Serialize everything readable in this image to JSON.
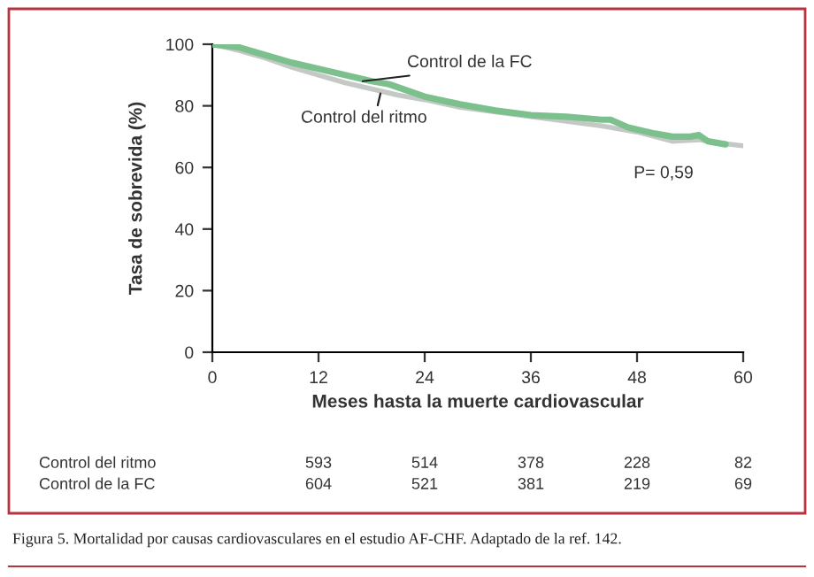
{
  "chart_data": {
    "type": "line",
    "xlabel": "Meses hasta la muerte cardiovascular",
    "ylabel": "Tasa de sobrevida (%)",
    "xlim": [
      0,
      60
    ],
    "xticks": [
      0,
      12,
      24,
      36,
      48,
      60
    ],
    "ylim": [
      0,
      100
    ],
    "yticks": [
      0,
      20,
      40,
      60,
      80,
      100
    ],
    "grid": false,
    "legend": false,
    "series": [
      {
        "name": "Control del ritmo",
        "color": "#c4c9c6",
        "x": [
          0,
          3,
          6,
          9,
          12,
          15,
          18,
          21,
          24,
          28,
          32,
          36,
          40,
          44,
          48,
          50,
          52,
          55,
          57,
          60
        ],
        "values": [
          100,
          98,
          95.5,
          92.5,
          90,
          87.5,
          85.5,
          83.5,
          82,
          79.5,
          78,
          76.5,
          75,
          73.5,
          71.5,
          70,
          68.5,
          69,
          68,
          67
        ]
      },
      {
        "name": "Control de la FC",
        "color": "#7cc08e",
        "x": [
          0,
          3,
          6,
          9,
          12,
          15,
          18,
          20,
          24,
          28,
          32,
          36,
          40,
          42,
          44,
          45,
          47,
          50,
          52,
          54,
          55,
          56,
          57,
          58
        ],
        "values": [
          100,
          99,
          96.5,
          94,
          92,
          90,
          88,
          87,
          83,
          80.5,
          78.5,
          77,
          76.5,
          76,
          75.5,
          75.5,
          73,
          71,
          70,
          70,
          70.5,
          68.5,
          68,
          67.5
        ]
      }
    ],
    "annotations": [
      "P= 0,59",
      "593",
      "514",
      "378",
      "228",
      "82",
      "604",
      "521",
      "381",
      "219",
      "69",
      "Figura 5. Mortalidad por causas cardiovasculares en el estudio AF-CHF. Adaptado de la ref. 142."
    ]
  }
}
